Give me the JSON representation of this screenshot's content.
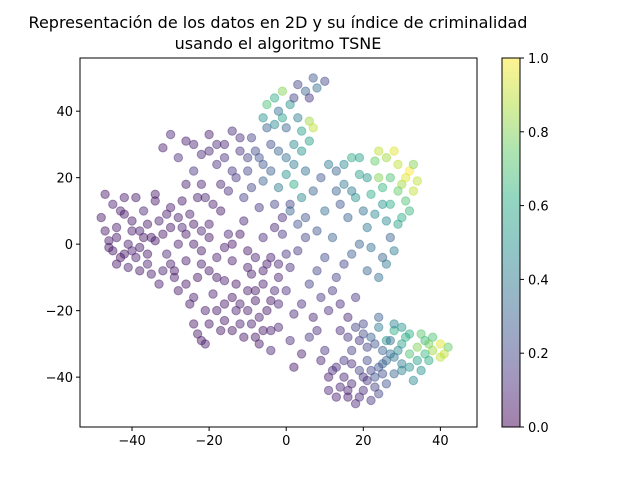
{
  "chart_data": {
    "type": "scatter",
    "title_line1": "Representación de los datos en 2D y su índice de criminalidad",
    "title_line2": "usando el algoritmo TSNE",
    "xlabel": "",
    "ylabel": "",
    "xlim": [
      -53.5,
      49.5
    ],
    "ylim": [
      -55,
      56
    ],
    "x_ticks": [
      -40,
      -20,
      0,
      20,
      40
    ],
    "x_tick_labels": [
      "−40",
      "−20",
      "0",
      "20",
      "40"
    ],
    "y_ticks": [
      -40,
      -20,
      0,
      20,
      40
    ],
    "y_tick_labels": [
      "−40",
      "−20",
      "0",
      "20",
      "40"
    ],
    "grid": false,
    "marker_alpha": 0.45,
    "colormap": "viridis",
    "colorbar": {
      "min": 0.0,
      "max": 1.0,
      "ticks": [
        0.0,
        0.2,
        0.4,
        0.6,
        0.8,
        1.0
      ],
      "tick_labels": [
        "0.0",
        "0.2",
        "0.4",
        "0.6",
        "0.8",
        "1.0"
      ]
    },
    "points": [
      [
        -47,
        15,
        0.05
      ],
      [
        -45,
        12,
        0.08
      ],
      [
        -48,
        8,
        0.05
      ],
      [
        -44,
        5,
        0.07
      ],
      [
        -46,
        1,
        0.06
      ],
      [
        -43,
        -4,
        0.05
      ],
      [
        -41,
        -7,
        0.08
      ],
      [
        -39,
        14,
        0.06
      ],
      [
        -37,
        10,
        0.1
      ],
      [
        -42,
        9,
        0.05
      ],
      [
        -40,
        4,
        0.07
      ],
      [
        -38,
        -1,
        0.06
      ],
      [
        -36,
        -6,
        0.09
      ],
      [
        -34,
        13,
        0.05
      ],
      [
        -33,
        7,
        0.08
      ],
      [
        -35,
        2,
        0.06
      ],
      [
        -31,
        -3,
        0.1
      ],
      [
        -30,
        11,
        0.07
      ],
      [
        -29,
        -8,
        0.05
      ],
      [
        -33,
        -12,
        0.08
      ],
      [
        -28,
        -14,
        0.06
      ],
      [
        -27,
        5,
        0.1
      ],
      [
        -25,
        9,
        0.08
      ],
      [
        -24,
        0,
        0.06
      ],
      [
        -26,
        -5,
        0.07
      ],
      [
        -23,
        -10,
        0.05
      ],
      [
        -21,
        14,
        0.1
      ],
      [
        -20,
        6,
        0.07
      ],
      [
        -22,
        -2,
        0.06
      ],
      [
        -19,
        -15,
        0.08
      ],
      [
        -18,
        -20,
        0.06
      ],
      [
        -16,
        -23,
        0.05
      ],
      [
        -15,
        3,
        0.1
      ],
      [
        -14,
        -5,
        0.07
      ],
      [
        -17,
        10,
        0.06
      ],
      [
        -13,
        -12,
        0.05
      ],
      [
        -12,
        -18,
        0.08
      ],
      [
        -11,
        7,
        0.1
      ],
      [
        -10,
        -2,
        0.06
      ],
      [
        -9,
        -9,
        0.07
      ],
      [
        -8,
        -14,
        0.05
      ],
      [
        -7,
        -22,
        0.08
      ],
      [
        -6,
        2,
        0.12
      ],
      [
        -5,
        -6,
        0.07
      ],
      [
        -4,
        -17,
        0.06
      ],
      [
        -3,
        5,
        0.1
      ],
      [
        -2,
        -10,
        0.08
      ],
      [
        -1,
        8,
        0.12
      ],
      [
        0,
        -3,
        0.15
      ],
      [
        1,
        12,
        0.2
      ],
      [
        -22,
        -29,
        0.05
      ],
      [
        -21,
        -30,
        0.08
      ],
      [
        -23,
        -27,
        0.06
      ],
      [
        -30,
        33,
        0.1
      ],
      [
        -32,
        29,
        0.08
      ],
      [
        -28,
        26,
        0.12
      ],
      [
        -26,
        31,
        0.07
      ],
      [
        -24,
        22,
        0.15
      ],
      [
        -22,
        27,
        0.1
      ],
      [
        -20,
        33,
        0.08
      ],
      [
        -18,
        24,
        0.12
      ],
      [
        -16,
        30,
        0.09
      ],
      [
        -14,
        34,
        0.11
      ],
      [
        -12,
        28,
        0.14
      ],
      [
        -10,
        22,
        0.2
      ],
      [
        -9,
        32,
        0.18
      ],
      [
        -7,
        26,
        0.25
      ],
      [
        -5,
        35,
        0.3
      ],
      [
        -4,
        30,
        0.22
      ],
      [
        -2,
        40,
        0.35
      ],
      [
        -3,
        44,
        0.6
      ],
      [
        -1,
        46,
        0.8
      ],
      [
        1,
        42,
        0.5
      ],
      [
        3,
        38,
        0.4
      ],
      [
        -5,
        42,
        0.7
      ],
      [
        0,
        35,
        0.3
      ],
      [
        2,
        30,
        0.45
      ],
      [
        4,
        34,
        0.55
      ],
      [
        6,
        37,
        0.85
      ],
      [
        7,
        35,
        0.9
      ],
      [
        3,
        48,
        0.2
      ],
      [
        5,
        46,
        0.3
      ],
      [
        7,
        50,
        0.25
      ],
      [
        8,
        47,
        0.35
      ],
      [
        10,
        49,
        0.2
      ],
      [
        6,
        44,
        0.15
      ],
      [
        2,
        44,
        0.18
      ],
      [
        -6,
        19,
        0.3
      ],
      [
        -2,
        17,
        0.4
      ],
      [
        0,
        21,
        0.5
      ],
      [
        2,
        18,
        0.6
      ],
      [
        4,
        14,
        0.45
      ],
      [
        1,
        10,
        0.3
      ],
      [
        3,
        6,
        0.25
      ],
      [
        5,
        2,
        0.2
      ],
      [
        -2,
        -25,
        0.1
      ],
      [
        1,
        -29,
        0.12
      ],
      [
        4,
        -33,
        0.08
      ],
      [
        2,
        -37,
        0.06
      ],
      [
        -4,
        -32,
        0.1
      ],
      [
        6,
        -28,
        0.15
      ],
      [
        8,
        -26,
        0.12
      ],
      [
        9,
        -35,
        0.1
      ],
      [
        11,
        -40,
        0.08
      ],
      [
        10,
        -32,
        0.14
      ],
      [
        13,
        22,
        0.3
      ],
      [
        15,
        18,
        0.4
      ],
      [
        14,
        12,
        0.25
      ],
      [
        16,
        8,
        0.3
      ],
      [
        18,
        14,
        0.5
      ],
      [
        17,
        26,
        0.6
      ],
      [
        19,
        21,
        0.55
      ],
      [
        20,
        10,
        0.35
      ],
      [
        21,
        5,
        0.4
      ],
      [
        22,
        15,
        0.6
      ],
      [
        23,
        25,
        0.75
      ],
      [
        24,
        20,
        0.8
      ],
      [
        25,
        12,
        0.5
      ],
      [
        26,
        7,
        0.45
      ],
      [
        27,
        2,
        0.3
      ],
      [
        28,
        28,
        0.95
      ],
      [
        29,
        24,
        0.9
      ],
      [
        30,
        18,
        0.85
      ],
      [
        31,
        13,
        0.7
      ],
      [
        32,
        22,
        1.0
      ],
      [
        33,
        16,
        0.9
      ],
      [
        30,
        8,
        0.6
      ],
      [
        28,
        -2,
        0.4
      ],
      [
        25,
        -4,
        0.3
      ],
      [
        22,
        -1,
        0.35
      ],
      [
        19,
        0,
        0.3
      ],
      [
        17,
        -3,
        0.28
      ],
      [
        15,
        -6,
        0.2
      ],
      [
        13,
        -10,
        0.18
      ],
      [
        12,
        -14,
        0.15
      ],
      [
        14,
        -18,
        0.12
      ],
      [
        16,
        -22,
        0.1
      ],
      [
        18,
        -16,
        0.15
      ],
      [
        20,
        -24,
        0.2
      ],
      [
        22,
        -28,
        0.3
      ],
      [
        24,
        -25,
        0.4
      ],
      [
        26,
        -29,
        0.5
      ],
      [
        28,
        -26,
        0.6
      ],
      [
        30,
        -30,
        0.55
      ],
      [
        32,
        -33,
        0.7
      ],
      [
        34,
        -31,
        0.8
      ],
      [
        36,
        -29,
        0.65
      ],
      [
        38,
        -32,
        0.85
      ],
      [
        40,
        -34,
        0.9
      ],
      [
        42,
        -31,
        0.75
      ],
      [
        37,
        -35,
        0.6
      ],
      [
        35,
        -38,
        0.5
      ],
      [
        33,
        -41,
        0.45
      ],
      [
        30,
        -36,
        0.4
      ],
      [
        28,
        -39,
        0.3
      ],
      [
        26,
        -42,
        0.25
      ],
      [
        24,
        -45,
        0.2
      ],
      [
        22,
        -47,
        0.15
      ],
      [
        20,
        -44,
        0.12
      ],
      [
        18,
        -48,
        0.1
      ],
      [
        16,
        -46,
        0.08
      ],
      [
        14,
        -43,
        0.1
      ],
      [
        12,
        -38,
        0.12
      ],
      [
        15,
        -35,
        0.15
      ],
      [
        17,
        -32,
        0.18
      ],
      [
        19,
        -38,
        0.2
      ],
      [
        21,
        -35,
        0.22
      ],
      [
        23,
        -40,
        0.25
      ],
      [
        25,
        -36,
        0.3
      ],
      [
        27,
        -33,
        0.35
      ],
      [
        -45,
        -2,
        0.06
      ],
      [
        -43,
        10,
        0.07
      ],
      [
        -39,
        -4,
        0.08
      ],
      [
        -37,
        2,
        0.05
      ],
      [
        -35,
        -9,
        0.07
      ],
      [
        -32,
        3,
        0.06
      ],
      [
        -30,
        -6,
        0.08
      ],
      [
        -28,
        8,
        0.07
      ],
      [
        -26,
        -12,
        0.06
      ],
      [
        -24,
        -16,
        0.07
      ],
      [
        -22,
        4,
        0.09
      ],
      [
        -20,
        -8,
        0.06
      ],
      [
        -18,
        -4,
        0.08
      ],
      [
        -16,
        -11,
        0.07
      ],
      [
        -14,
        -16,
        0.06
      ],
      [
        -12,
        -24,
        0.08
      ],
      [
        -10,
        -20,
        0.07
      ],
      [
        -8,
        -4,
        0.09
      ],
      [
        -6,
        -12,
        0.08
      ],
      [
        -4,
        -26,
        0.07
      ],
      [
        -2,
        -18,
        0.1
      ],
      [
        0,
        -14,
        0.12
      ],
      [
        2,
        -21,
        0.1
      ],
      [
        -1,
        3,
        0.15
      ],
      [
        1,
        -7,
        0.12
      ],
      [
        -3,
        12,
        0.2
      ],
      [
        5,
        22,
        0.35
      ],
      [
        7,
        16,
        0.3
      ],
      [
        9,
        20,
        0.25
      ],
      [
        11,
        24,
        0.4
      ],
      [
        -13,
        20,
        0.15
      ],
      [
        -15,
        16,
        0.12
      ],
      [
        -11,
        14,
        0.18
      ],
      [
        -9,
        17,
        0.2
      ],
      [
        -7,
        11,
        0.15
      ],
      [
        -17,
        18,
        0.1
      ],
      [
        -19,
        12,
        0.08
      ],
      [
        -23,
        14,
        0.07
      ],
      [
        -27,
        13,
        0.06
      ],
      [
        -31,
        9,
        0.07
      ],
      [
        -34,
        15,
        0.06
      ],
      [
        -36,
        6,
        0.05
      ],
      [
        -41,
        0,
        0.07
      ],
      [
        -44,
        -6,
        0.06
      ],
      [
        -47,
        4,
        0.05
      ],
      [
        -42,
        14,
        0.07
      ],
      [
        -38,
        -8,
        0.06
      ],
      [
        -40,
        -2,
        0.08
      ],
      [
        -29,
        -10,
        0.07
      ],
      [
        -25,
        -18,
        0.06
      ],
      [
        -21,
        -20,
        0.07
      ],
      [
        -17,
        -26,
        0.06
      ],
      [
        -13,
        -20,
        0.08
      ],
      [
        -9,
        -24,
        0.07
      ],
      [
        -5,
        -20,
        0.06
      ],
      [
        -11,
        -28,
        0.05
      ],
      [
        -7,
        -30,
        0.06
      ],
      [
        -3,
        -14,
        0.1
      ],
      [
        3,
        -2,
        0.15
      ],
      [
        5,
        8,
        0.25
      ],
      [
        8,
        -8,
        0.2
      ],
      [
        10,
        -4,
        0.22
      ],
      [
        12,
        2,
        0.3
      ],
      [
        10,
        10,
        0.35
      ],
      [
        8,
        4,
        0.25
      ],
      [
        6,
        -12,
        0.18
      ],
      [
        4,
        -18,
        0.12
      ],
      [
        7,
        -22,
        0.1
      ],
      [
        9,
        -16,
        0.15
      ],
      [
        11,
        -20,
        0.12
      ],
      [
        24,
        28,
        0.9
      ],
      [
        26,
        26,
        0.85
      ],
      [
        27,
        20,
        0.7
      ],
      [
        29,
        16,
        0.75
      ],
      [
        31,
        20,
        0.95
      ],
      [
        33,
        24,
        0.8
      ],
      [
        34,
        19,
        0.9
      ],
      [
        32,
        10,
        0.65
      ],
      [
        29,
        6,
        0.55
      ],
      [
        27,
        12,
        0.6
      ],
      [
        25,
        17,
        0.65
      ],
      [
        23,
        9,
        0.45
      ],
      [
        21,
        20,
        0.5
      ],
      [
        19,
        26,
        0.55
      ],
      [
        17,
        16,
        0.4
      ],
      [
        15,
        24,
        0.45
      ],
      [
        13,
        16,
        0.3
      ],
      [
        21,
        -8,
        0.3
      ],
      [
        24,
        -10,
        0.35
      ],
      [
        26,
        -6,
        0.4
      ],
      [
        40,
        -30,
        0.95
      ],
      [
        41,
        -33,
        0.9
      ],
      [
        38,
        -28,
        0.7
      ],
      [
        36,
        -33,
        0.65
      ],
      [
        34,
        -35,
        0.55
      ],
      [
        31,
        -28,
        0.6
      ],
      [
        29,
        -32,
        0.45
      ],
      [
        27,
        -29,
        0.35
      ],
      [
        25,
        -32,
        0.3
      ],
      [
        23,
        -30,
        0.25
      ],
      [
        21,
        -31,
        0.2
      ],
      [
        19,
        -29,
        0.15
      ],
      [
        17,
        -36,
        0.12
      ],
      [
        15,
        -40,
        0.1
      ],
      [
        13,
        -46,
        0.08
      ],
      [
        17,
        -42,
        0.1
      ],
      [
        19,
        -46,
        0.12
      ],
      [
        21,
        -41,
        0.15
      ],
      [
        23,
        -43,
        0.18
      ],
      [
        25,
        -39,
        0.22
      ],
      [
        -46,
        -1,
        0.05
      ],
      [
        -44,
        2,
        0.06
      ],
      [
        -42,
        -3,
        0.05
      ],
      [
        -40,
        7,
        0.06
      ],
      [
        -38,
        4,
        0.07
      ],
      [
        -36,
        -3,
        0.06
      ],
      [
        -34,
        1,
        0.05
      ],
      [
        -32,
        -8,
        0.07
      ],
      [
        -30,
        5,
        0.06
      ],
      [
        -28,
        0,
        0.07
      ],
      [
        -26,
        3,
        0.06
      ],
      [
        -24,
        6,
        0.05
      ],
      [
        -22,
        -6,
        0.07
      ],
      [
        -20,
        2,
        0.06
      ],
      [
        -18,
        -10,
        0.05
      ],
      [
        -16,
        -1,
        0.07
      ],
      [
        -14,
        0,
        0.06
      ],
      [
        -12,
        3,
        0.05
      ],
      [
        -10,
        -7,
        0.07
      ],
      [
        -8,
        -17,
        0.06
      ],
      [
        -6,
        -8,
        0.07
      ],
      [
        -4,
        -4,
        0.08
      ],
      [
        -2,
        -6,
        0.1
      ],
      [
        -24,
        -24,
        0.05
      ],
      [
        -20,
        -24,
        0.06
      ],
      [
        -16,
        -18,
        0.05
      ],
      [
        -14,
        -26,
        0.06
      ],
      [
        -10,
        -14,
        0.07
      ],
      [
        -6,
        -26,
        0.06
      ],
      [
        -8,
        -28,
        0.05
      ],
      [
        -26,
        18,
        0.07
      ],
      [
        -24,
        30,
        0.09
      ],
      [
        -22,
        18,
        0.08
      ],
      [
        -20,
        28,
        0.1
      ],
      [
        -18,
        30,
        0.11
      ],
      [
        -16,
        26,
        0.13
      ],
      [
        -14,
        22,
        0.15
      ],
      [
        -12,
        32,
        0.12
      ],
      [
        -10,
        26,
        0.18
      ],
      [
        -8,
        28,
        0.22
      ],
      [
        -6,
        24,
        0.26
      ],
      [
        -4,
        22,
        0.28
      ],
      [
        -2,
        28,
        0.3
      ],
      [
        0,
        26,
        0.35
      ],
      [
        2,
        24,
        0.4
      ],
      [
        4,
        28,
        0.5
      ],
      [
        6,
        31,
        0.55
      ],
      [
        -3,
        36,
        0.45
      ],
      [
        -6,
        38,
        0.5
      ],
      [
        -1,
        38,
        0.55
      ],
      [
        14,
        -26,
        0.12
      ],
      [
        16,
        -28,
        0.15
      ],
      [
        18,
        -25,
        0.18
      ],
      [
        20,
        -27,
        0.22
      ],
      [
        24,
        -22,
        0.28
      ],
      [
        28,
        -24,
        0.42
      ],
      [
        30,
        -25,
        0.5
      ],
      [
        32,
        -27,
        0.62
      ],
      [
        35,
        -27,
        0.72
      ],
      [
        37,
        -30,
        0.78
      ],
      [
        11,
        -44,
        0.1
      ],
      [
        13,
        -37,
        0.12
      ],
      [
        16,
        -44,
        0.09
      ],
      [
        20,
        -40,
        0.14
      ],
      [
        22,
        -38,
        0.2
      ],
      [
        24,
        -37,
        0.26
      ],
      [
        26,
        -35,
        0.32
      ],
      [
        28,
        -34,
        0.38
      ],
      [
        30,
        -38,
        0.42
      ],
      [
        32,
        -37,
        0.5
      ]
    ]
  }
}
